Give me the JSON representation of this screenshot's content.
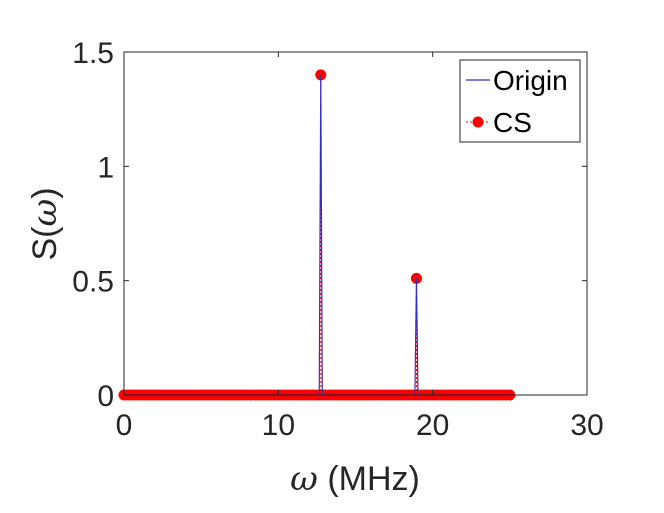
{
  "chart_data": {
    "type": "line",
    "xlabel_symbol": "ω",
    "xlabel_unit": " (MHz)",
    "ylabel_prefix": "S(",
    "ylabel_symbol": "ω",
    "ylabel_suffix": ")",
    "xlim": [
      0,
      30
    ],
    "ylim": [
      0,
      1.5
    ],
    "xticks": [
      0,
      10,
      20,
      30
    ],
    "xtick_labels": [
      "0",
      "10",
      "20",
      "30"
    ],
    "yticks": [
      0,
      0.5,
      1,
      1.5
    ],
    "ytick_labels": [
      "0",
      "0.5",
      "1",
      "1.5"
    ],
    "grid": false,
    "legend_position": "top-right",
    "series": [
      {
        "name": "Origin",
        "style": "line",
        "color": "#3b2fb3",
        "x": [
          0,
          12.65,
          12.75,
          12.85,
          18.85,
          18.95,
          19.05,
          25
        ],
        "y": [
          0,
          0,
          1.4,
          0,
          0,
          0.51,
          0,
          0
        ]
      },
      {
        "name": "CS",
        "style": "stem-markers",
        "color": "#ff0000",
        "x_start": 0,
        "x_end": 25,
        "x_step": 0.25,
        "peaks": [
          {
            "x": 12.75,
            "y": 1.4
          },
          {
            "x": 18.95,
            "y": 0.51
          }
        ]
      }
    ]
  }
}
